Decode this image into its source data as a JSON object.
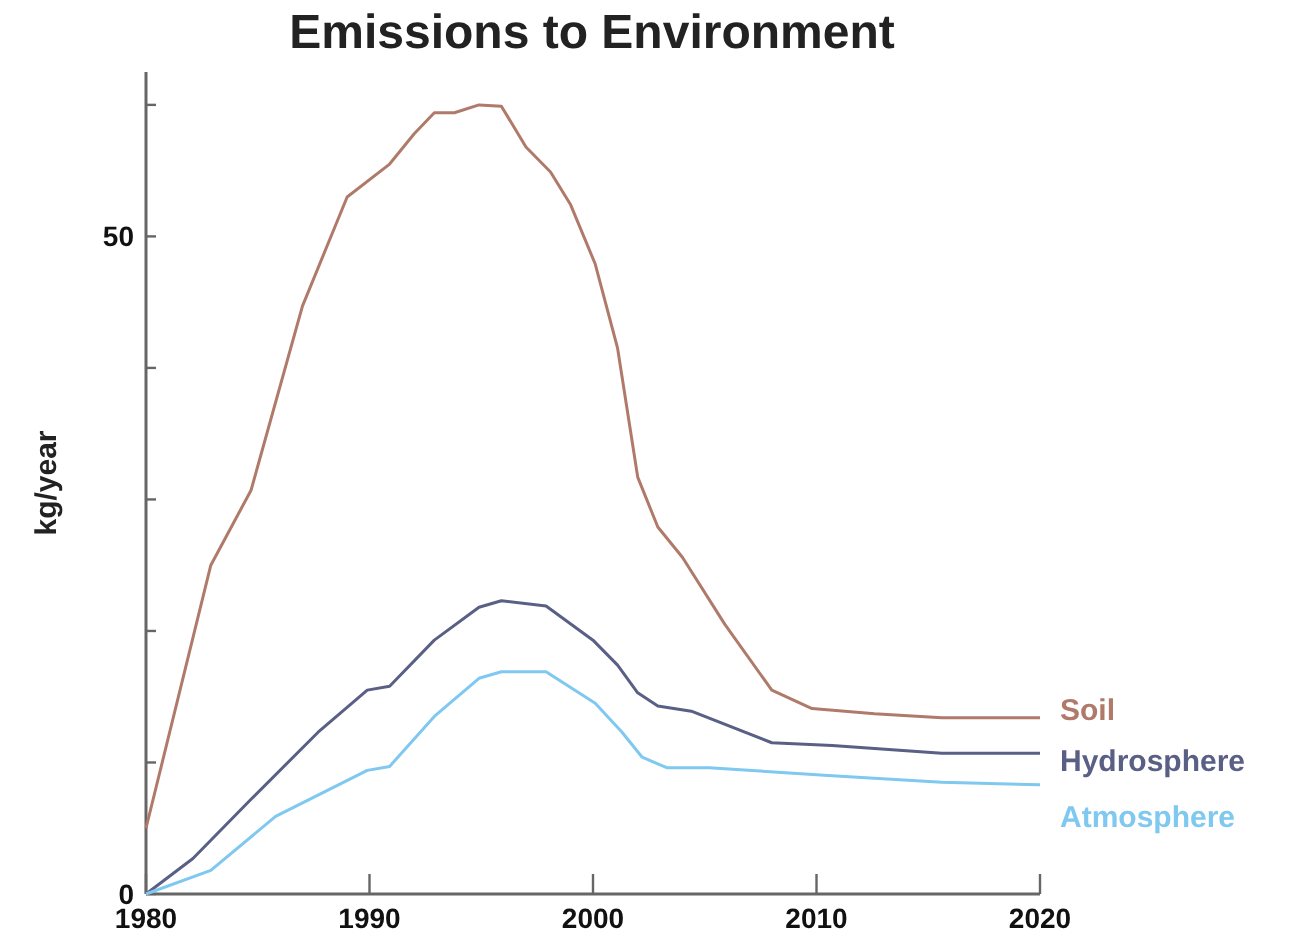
{
  "chart_data": {
    "type": "line",
    "title": "Emissions to Environment",
    "ylabel": "kg/year",
    "xlim": [
      1980,
      2020
    ],
    "xticks": [
      1980,
      1990,
      2000,
      2010,
      2020
    ],
    "ylim": [
      0,
      62.5
    ],
    "yticks": [
      0,
      {
        "value": 10,
        "label": null
      },
      {
        "value": 20,
        "label": null
      },
      {
        "value": 30,
        "label": null
      },
      {
        "value": 40,
        "label": null
      },
      50,
      {
        "value": 60,
        "label": null
      }
    ],
    "grid": false,
    "legend": false,
    "series": [
      {
        "name": "Soil",
        "color": "#b07a6a",
        "x": [
          1980,
          1982.9,
          1984.7,
          1987,
          1989,
          1990.9,
          1992,
          1992.9,
          1993.8,
          1994.9,
          1995.9,
          1997,
          1998.1,
          1999,
          2000.1,
          2001.1,
          2002,
          2002.9,
          2004,
          2005.9,
          2008,
          2009.8,
          2012.6,
          2015.6,
          2020
        ],
        "values": [
          5.0,
          25.0,
          30.7,
          44.7,
          53.0,
          55.5,
          57.8,
          59.4,
          59.4,
          60.0,
          59.9,
          56.8,
          54.9,
          52.4,
          47.9,
          41.5,
          31.7,
          27.9,
          25.6,
          20.5,
          15.5,
          14.1,
          13.7,
          13.4,
          13.4
        ]
      },
      {
        "name": "Hydrosphere",
        "color": "#5a5f85",
        "x": [
          1980,
          1982.1,
          1984.7,
          1987.7,
          1989.9,
          1990.9,
          1992.9,
          1994.9,
          1995.9,
          1997.9,
          2000,
          2001.1,
          2002,
          2002.9,
          2004.4,
          2008,
          2010.7,
          2015.6,
          2020
        ],
        "values": [
          0,
          2.7,
          7.2,
          12.3,
          15.5,
          15.8,
          19.3,
          21.8,
          22.3,
          21.9,
          19.3,
          17.4,
          15.3,
          14.3,
          13.9,
          11.5,
          11.3,
          10.7,
          10.7
        ]
      },
      {
        "name": "Atmosphere",
        "color": "#7fc8ef",
        "x": [
          1980,
          1982.9,
          1985.8,
          1989.9,
          1990.9,
          1992.9,
          1994.9,
          1995.9,
          1997.9,
          2000.1,
          2001.3,
          2002.2,
          2003.3,
          2005.2,
          2010.7,
          2015.6,
          2020
        ],
        "values": [
          0,
          1.8,
          5.9,
          9.4,
          9.7,
          13.5,
          16.4,
          16.9,
          16.9,
          14.5,
          12.3,
          10.4,
          9.6,
          9.6,
          9.0,
          8.5,
          8.3
        ]
      }
    ]
  }
}
